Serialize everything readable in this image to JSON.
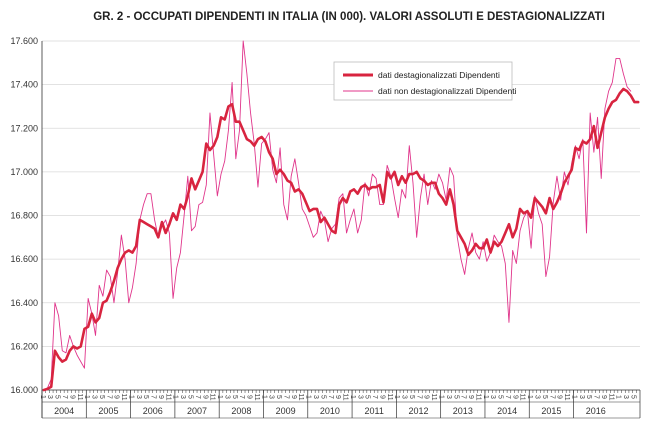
{
  "chart_data": {
    "type": "line",
    "title": "GR. 2 - OCCUPATI DIPENDENTI IN ITALIA (IN 000). VALORI ASSOLUTI E DESTAGIONALIZZATI",
    "ylim": [
      16000,
      17600
    ],
    "yticks": [
      "16.000",
      "16.200",
      "16.400",
      "16.600",
      "16.800",
      "17.000",
      "17.200",
      "17.400",
      "17.600"
    ],
    "years": [
      "2004",
      "2005",
      "2006",
      "2007",
      "2008",
      "2009",
      "2010",
      "2011",
      "2012",
      "2013",
      "2014",
      "2015",
      "2016"
    ],
    "month_labels": [
      "1",
      "3",
      "5",
      "7",
      "9",
      "11"
    ],
    "grid": "horizontal",
    "legend_position": "top-right",
    "colors": {
      "sa": "#d8243f",
      "nsa": "#e0358b",
      "grid": "#d9d9d9"
    },
    "series": [
      {
        "name": "dati destagionalizzati Dipendenti",
        "key": "sa",
        "values": [
          16000,
          16005,
          16015,
          16180,
          16150,
          16130,
          16140,
          16180,
          16200,
          16190,
          16200,
          16280,
          16290,
          16350,
          16310,
          16330,
          16400,
          16410,
          16450,
          16500,
          16560,
          16600,
          16630,
          16640,
          16630,
          16660,
          16780,
          16770,
          16760,
          16750,
          16740,
          16700,
          16770,
          16720,
          16760,
          16810,
          16780,
          16850,
          16830,
          16890,
          16970,
          16920,
          16960,
          17000,
          17130,
          17100,
          17120,
          17160,
          17250,
          17240,
          17300,
          17310,
          17230,
          17230,
          17190,
          17150,
          17140,
          17120,
          17150,
          17160,
          17140,
          17090,
          17060,
          16990,
          17010,
          16990,
          16960,
          16950,
          16910,
          16920,
          16900,
          16860,
          16820,
          16830,
          16830,
          16770,
          16790,
          16760,
          16730,
          16720,
          16850,
          16880,
          16860,
          16910,
          16920,
          16900,
          16930,
          16940,
          16920,
          16930,
          16930,
          16940,
          16860,
          17000,
          16970,
          17000,
          16940,
          16980,
          16950,
          16990,
          16990,
          17000,
          16970,
          16960,
          16940,
          16950,
          16950,
          16900,
          16880,
          16850,
          16920,
          16850,
          16730,
          16700,
          16670,
          16620,
          16640,
          16670,
          16650,
          16650,
          16690,
          16630,
          16680,
          16660,
          16680,
          16720,
          16760,
          16700,
          16740,
          16830,
          16810,
          16820,
          16790,
          16880,
          16860,
          16840,
          16810,
          16880,
          16830,
          16860,
          16900,
          16950,
          16980,
          17010,
          17110,
          17100,
          17140,
          17130,
          17150,
          17210,
          17110,
          17180,
          17250,
          17290,
          17320,
          17330,
          17360,
          17380,
          17370,
          17350,
          17320,
          17320
        ]
      },
      {
        "name": "dati non destagionalizzati Dipendenti",
        "key": "nsa",
        "values": [
          16000,
          16010,
          16050,
          16400,
          16340,
          16180,
          16170,
          16250,
          16200,
          16160,
          16130,
          16100,
          16420,
          16350,
          16250,
          16480,
          16430,
          16550,
          16520,
          16400,
          16540,
          16710,
          16600,
          16400,
          16470,
          16580,
          16780,
          16850,
          16900,
          16900,
          16780,
          16700,
          16750,
          16780,
          16720,
          16420,
          16560,
          16630,
          16800,
          16980,
          16730,
          16750,
          16850,
          16860,
          16940,
          17270,
          17080,
          16890,
          16990,
          17050,
          17190,
          17410,
          17060,
          17190,
          17600,
          17450,
          17270,
          17130,
          16930,
          17130,
          17150,
          17180,
          17010,
          16950,
          17110,
          16850,
          16780,
          16980,
          17060,
          16950,
          16830,
          16800,
          16750,
          16700,
          16720,
          16820,
          16780,
          16680,
          16740,
          16760,
          16880,
          16900,
          16720,
          16780,
          16830,
          16720,
          16780,
          16950,
          16890,
          16990,
          16970,
          16850,
          16850,
          17030,
          16980,
          16880,
          16790,
          16920,
          16880,
          17120,
          16950,
          16700,
          16880,
          16990,
          16850,
          16960,
          16920,
          16990,
          16950,
          16870,
          17020,
          16980,
          16700,
          16600,
          16530,
          16650,
          16720,
          16630,
          16600,
          16680,
          16590,
          16630,
          16710,
          16680,
          16660,
          16580,
          16310,
          16640,
          16580,
          16730,
          16790,
          16820,
          16650,
          16890,
          16810,
          16760,
          16520,
          16610,
          16860,
          16980,
          16870,
          17000,
          16940,
          17040,
          17120,
          17060,
          17150,
          16720,
          17270,
          17090,
          17250,
          16970,
          17290,
          17370,
          17410,
          17520,
          17520,
          17450,
          17390,
          17370
        ]
      }
    ]
  }
}
